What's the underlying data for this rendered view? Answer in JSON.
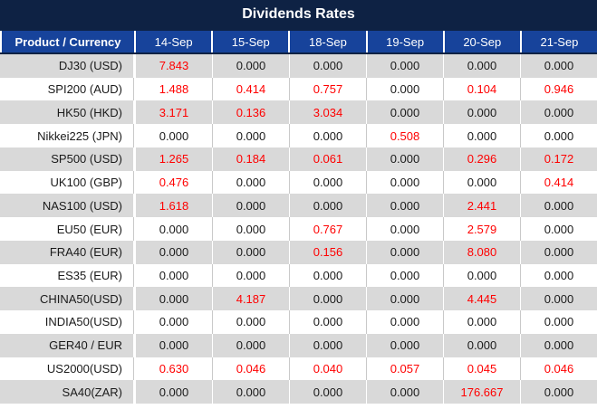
{
  "title": "Dividends Rates",
  "columns": [
    "Product / Currency",
    "14-Sep",
    "15-Sep",
    "18-Sep",
    "19-Sep",
    "20-Sep",
    "21-Sep"
  ],
  "rows": [
    {
      "product": "DJ30 (USD)",
      "values": [
        "7.843",
        "0.000",
        "0.000",
        "0.000",
        "0.000",
        "0.000"
      ]
    },
    {
      "product": "SPI200 (AUD)",
      "values": [
        "1.488",
        "0.414",
        "0.757",
        "0.000",
        "0.104",
        "0.946"
      ]
    },
    {
      "product": "HK50 (HKD)",
      "values": [
        "3.171",
        "0.136",
        "3.034",
        "0.000",
        "0.000",
        "0.000"
      ]
    },
    {
      "product": "Nikkei225 (JPN)",
      "values": [
        "0.000",
        "0.000",
        "0.000",
        "0.508",
        "0.000",
        "0.000"
      ]
    },
    {
      "product": "SP500 (USD)",
      "values": [
        "1.265",
        "0.184",
        "0.061",
        "0.000",
        "0.296",
        "0.172"
      ]
    },
    {
      "product": "UK100 (GBP)",
      "values": [
        "0.476",
        "0.000",
        "0.000",
        "0.000",
        "0.000",
        "0.414"
      ]
    },
    {
      "product": "NAS100 (USD)",
      "values": [
        "1.618",
        "0.000",
        "0.000",
        "0.000",
        "2.441",
        "0.000"
      ]
    },
    {
      "product": "EU50 (EUR)",
      "values": [
        "0.000",
        "0.000",
        "0.767",
        "0.000",
        "2.579",
        "0.000"
      ]
    },
    {
      "product": "FRA40 (EUR)",
      "values": [
        "0.000",
        "0.000",
        "0.156",
        "0.000",
        "8.080",
        "0.000"
      ]
    },
    {
      "product": "ES35 (EUR)",
      "values": [
        "0.000",
        "0.000",
        "0.000",
        "0.000",
        "0.000",
        "0.000"
      ]
    },
    {
      "product": "CHINA50(USD)",
      "values": [
        "0.000",
        "4.187",
        "0.000",
        "0.000",
        "4.445",
        "0.000"
      ]
    },
    {
      "product": "INDIA50(USD)",
      "values": [
        "0.000",
        "0.000",
        "0.000",
        "0.000",
        "0.000",
        "0.000"
      ]
    },
    {
      "product": "GER40 / EUR",
      "values": [
        "0.000",
        "0.000",
        "0.000",
        "0.000",
        "0.000",
        "0.000"
      ]
    },
    {
      "product": "US2000(USD)",
      "values": [
        "0.630",
        "0.046",
        "0.040",
        "0.057",
        "0.045",
        "0.046"
      ]
    },
    {
      "product": "SA40(ZAR)",
      "values": [
        "0.000",
        "0.000",
        "0.000",
        "0.000",
        "176.667",
        "0.000"
      ]
    }
  ],
  "colors": {
    "title_bg": "#0e2244",
    "header_bg": "#17439b",
    "alt_row": "#d9d9d9",
    "highlight_red": "#ff0000",
    "text": "#1a1a1a",
    "grid": "#c9c9c9"
  }
}
